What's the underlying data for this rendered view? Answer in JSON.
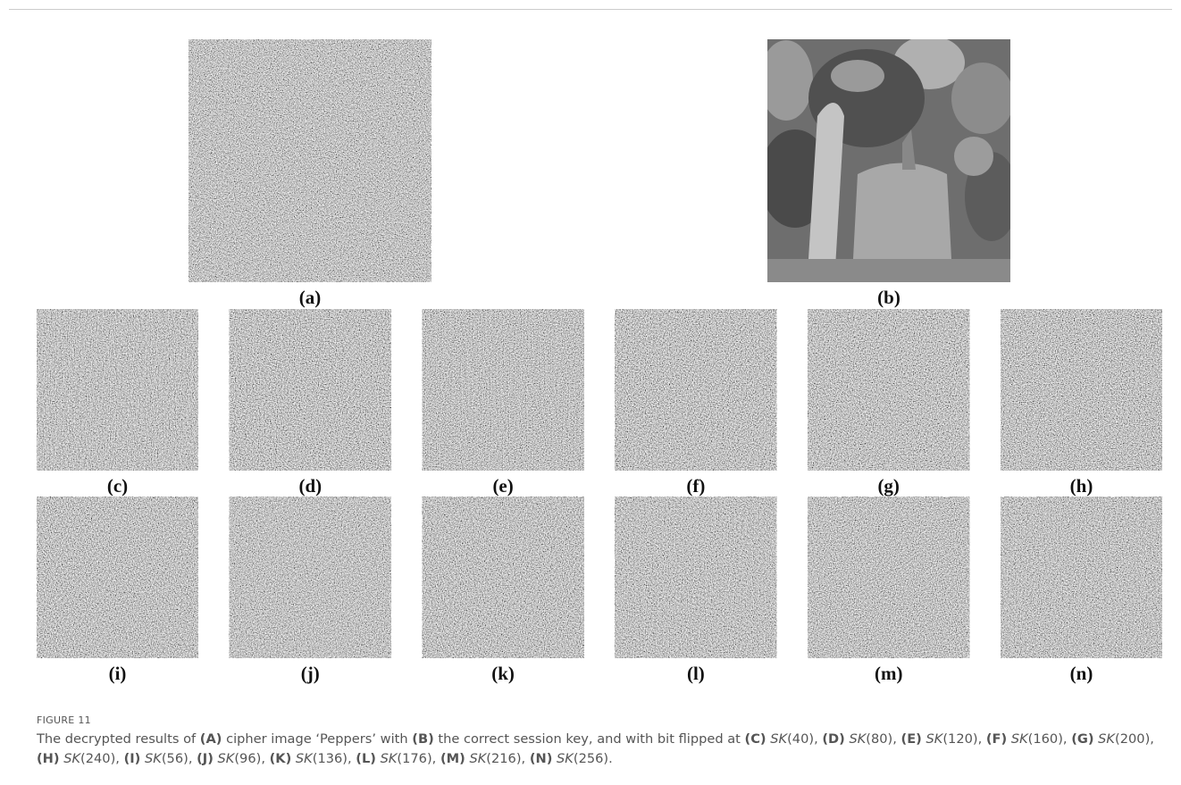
{
  "figure": {
    "panels": [
      "(a)",
      "(b)",
      "(c)",
      "(d)",
      "(e)",
      "(f)",
      "(g)",
      "(h)",
      "(i)",
      "(j)",
      "(k)",
      "(l)",
      "(m)",
      "(n)"
    ],
    "caption": {
      "label": "FIGURE 11",
      "intro": "The decrypted results of",
      "items": [
        {
          "label": "(A)",
          "text": "cipher image ‘Peppers’ with"
        },
        {
          "label": "(B)",
          "text": "the correct session key, and with bit flipped at"
        }
      ],
      "keys": [
        {
          "label": "(C)",
          "key": "SK",
          "arg": "(40)",
          "sep": ","
        },
        {
          "label": "(D)",
          "key": "SK",
          "arg": "(80)",
          "sep": ","
        },
        {
          "label": "(E)",
          "key": "SK",
          "arg": "(120)",
          "sep": ","
        },
        {
          "label": "(F)",
          "key": "SK",
          "arg": "(160)",
          "sep": ","
        },
        {
          "label": "(G)",
          "key": "SK",
          "arg": "(200)",
          "sep": ","
        },
        {
          "label": "(H)",
          "key": "SK",
          "arg": "(240)",
          "sep": ","
        },
        {
          "label": "(I)",
          "key": "SK",
          "arg": "(56)",
          "sep": ","
        },
        {
          "label": "(J)",
          "key": "SK",
          "arg": "(96)",
          "sep": ","
        },
        {
          "label": "(K)",
          "key": "SK",
          "arg": "(136)",
          "sep": ","
        },
        {
          "label": "(L)",
          "key": "SK",
          "arg": "(176)",
          "sep": ","
        },
        {
          "label": "(M)",
          "key": "SK",
          "arg": "(216)",
          "sep": ","
        },
        {
          "label": "(N)",
          "key": "SK",
          "arg": "(256)",
          "sep": "."
        }
      ]
    }
  }
}
